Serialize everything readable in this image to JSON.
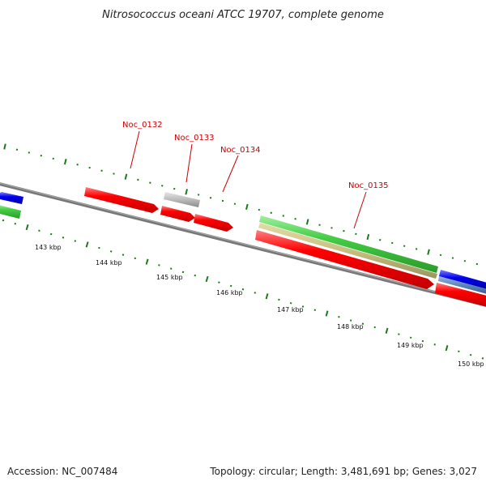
{
  "title": "Nitrosococcus oceani ATCC 19707, complete genome",
  "footer": {
    "accession": "Accession: NC_007484",
    "summary": "Topology: circular; Length: 3,481,691 bp; Genes: 3,027"
  },
  "ticks": [
    {
      "label": "143 kbp"
    },
    {
      "label": "144 kbp"
    },
    {
      "label": "145 kbp"
    },
    {
      "label": "146 kbp"
    },
    {
      "label": "147 kbp"
    },
    {
      "label": "148 kbp"
    },
    {
      "label": "149 kbp"
    },
    {
      "label": "150 kbp"
    }
  ],
  "gene_labels": [
    {
      "text": "Noc_0132"
    },
    {
      "text": "Noc_0133"
    },
    {
      "text": "Noc_0134"
    },
    {
      "text": "Noc_0135"
    }
  ],
  "colors": {
    "forward_cds": "#ff0000",
    "reverse_cds": "#0000ee",
    "green_track": "#44cc44",
    "khaki_track": "#c8c080",
    "gray_feature": "#bbbbbb",
    "backbone": "#808080",
    "tick": "#1a7a1a",
    "label": "#cc0000"
  }
}
